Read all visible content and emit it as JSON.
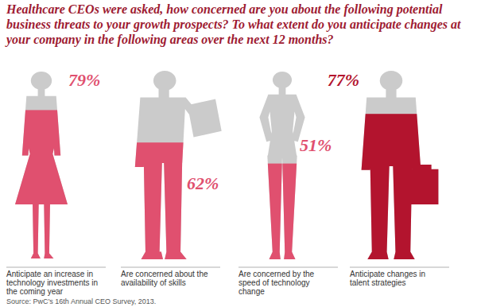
{
  "chart_data": {
    "type": "bar",
    "title": "Healthcare CEOs were asked, how concerned are you about the following potential business threats to your growth prospects? To what extent do you anticipate changes at your company in the following areas over the next 12 months?",
    "categories": [
      "Anticipate an increase in technology investments in the coming year",
      "Are concerned about the availability of skills",
      "Are concerned by the speed of technology change",
      "Anticipate changes in talent strategies"
    ],
    "values": [
      79,
      62,
      51,
      77
    ],
    "value_labels": [
      "79%",
      "62%",
      "51%",
      "77%"
    ],
    "colors": [
      "#e0506f",
      "#e0506f",
      "#e0506f",
      "#b3142e"
    ],
    "ylim": [
      0,
      100
    ],
    "data_labels": true,
    "tick_labels": false,
    "source": "Source: PwC’s 16th Annual CEO Survey, 2013."
  }
}
